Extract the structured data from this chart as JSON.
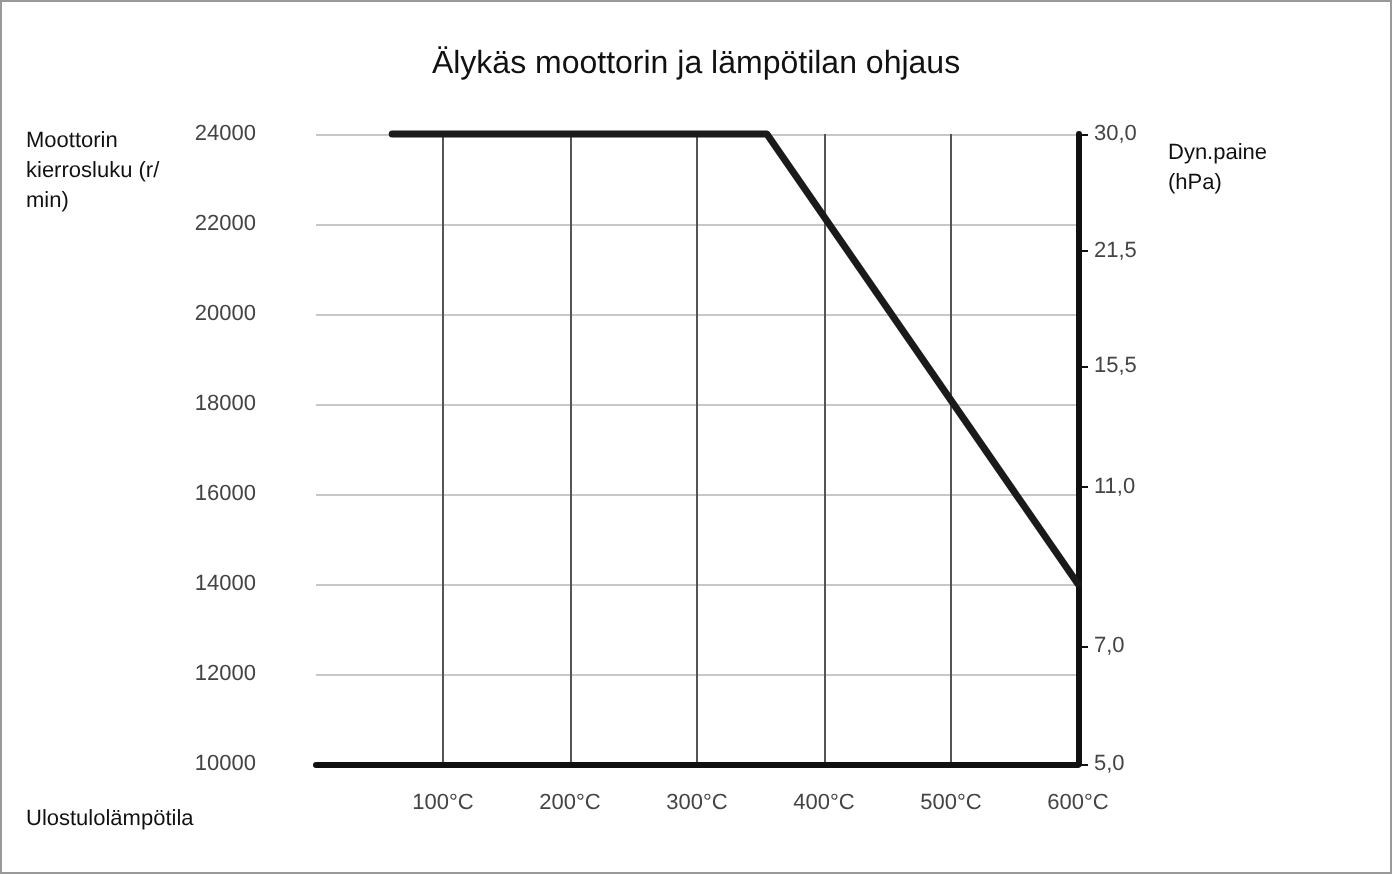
{
  "chart_data": {
    "type": "line",
    "title": "Älykäs moottorin ja lämpötilan ohjaus",
    "xlabel": "Ulostulolämpötila",
    "ylabel": "Moottorin kierrosluku (r/min)",
    "y2label": "Dyn.paine (hPa)",
    "x": [
      60,
      355,
      600
    ],
    "series": [
      {
        "color": "#1a1a1a",
        "values": [
          24000,
          24000,
          14000
        ]
      }
    ],
    "xlim": [
      0,
      600
    ],
    "xticks": [
      {
        "value": 100,
        "label": "100°C"
      },
      {
        "value": 200,
        "label": "200°C"
      },
      {
        "value": 300,
        "label": "300°C"
      },
      {
        "value": 400,
        "label": "400°C"
      },
      {
        "value": 500,
        "label": "500°C"
      },
      {
        "value": 600,
        "label": "600°C"
      }
    ],
    "ylim": [
      10000,
      24000
    ],
    "yticks": [
      10000,
      12000,
      14000,
      16000,
      18000,
      20000,
      22000,
      24000
    ],
    "y2lim": [
      5,
      30
    ],
    "y2ticks": [
      {
        "value": 5,
        "label": "5,0"
      },
      {
        "value": 7,
        "label": "7,0"
      },
      {
        "value": 11,
        "label": "11,0"
      },
      {
        "value": 15.5,
        "label": "15,5"
      },
      {
        "value": 21.5,
        "label": "21,5"
      },
      {
        "value": 30,
        "label": "30,0"
      }
    ],
    "log": "y2",
    "grid": true,
    "marker": "none",
    "line_style": "solid"
  }
}
